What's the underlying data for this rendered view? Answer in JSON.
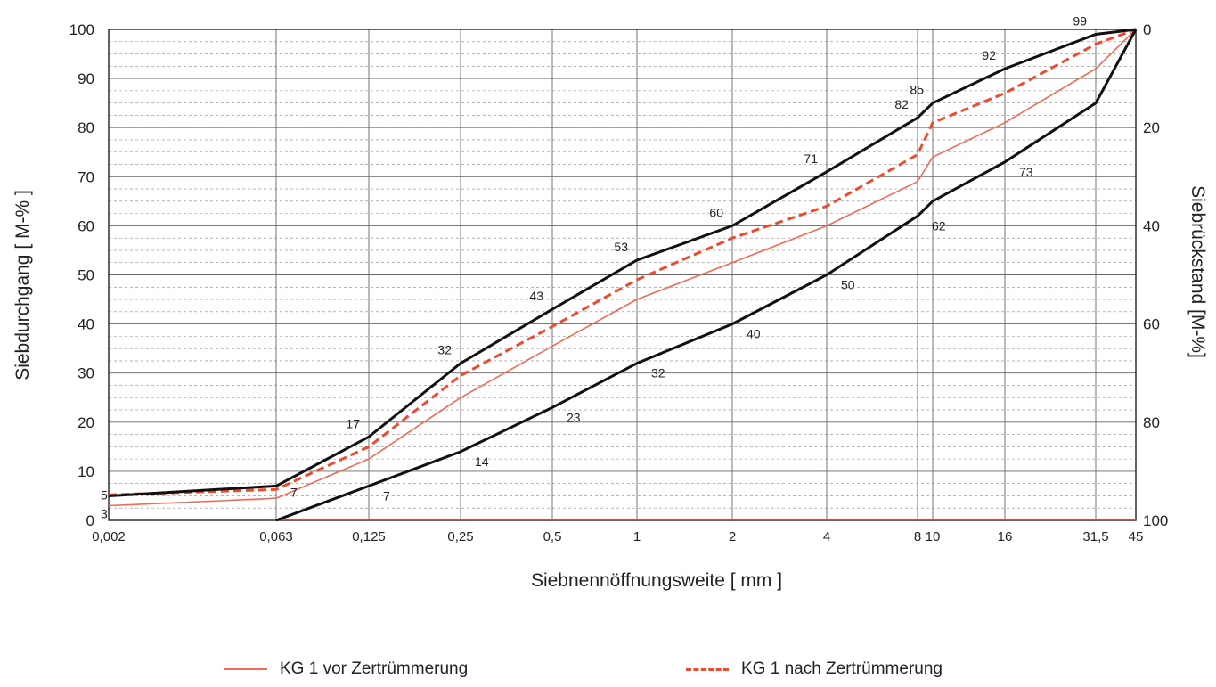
{
  "chart_data": {
    "type": "line",
    "xlabel": "Siebnennöffnungsweite [ mm ]",
    "ylabel_left": "Siebdurchgang [ M-% ]",
    "ylabel_right": "Siebrückstand [M-%]",
    "x_scale": "log",
    "x_ticks": [
      "0,002",
      "0,063",
      "0,125",
      "0,25",
      "0,5",
      "1",
      "2",
      "4",
      "8",
      "10",
      "16",
      "31,5",
      "45"
    ],
    "x_values": [
      0.002,
      0.063,
      0.125,
      0.25,
      0.5,
      1,
      2,
      4,
      8,
      10,
      16,
      31.5,
      45
    ],
    "ylim": [
      0,
      100
    ],
    "y_ticks_left": [
      0,
      10,
      20,
      30,
      40,
      50,
      60,
      70,
      80,
      90,
      100
    ],
    "y_ticks_right": [
      0,
      20,
      40,
      60,
      80,
      100
    ],
    "grid": true,
    "upper_limit": {
      "x": [
        0.002,
        0.063,
        0.125,
        0.25,
        0.5,
        1,
        2,
        4,
        8,
        10,
        16,
        31.5,
        45
      ],
      "y": [
        5,
        7,
        17,
        32,
        43,
        53,
        60,
        71,
        82,
        85,
        92,
        99,
        100
      ],
      "labels": [
        "",
        "",
        "17",
        "32",
        "43",
        "53",
        "60",
        "71",
        "82",
        "85",
        "92",
        "99",
        ""
      ]
    },
    "lower_limit": {
      "x": [
        0.063,
        0.125,
        0.25,
        0.5,
        1,
        2,
        4,
        8,
        10,
        16,
        31.5,
        45
      ],
      "y": [
        0,
        7,
        14,
        23,
        32,
        40,
        50,
        62,
        65,
        73,
        85,
        100
      ],
      "labels": [
        "",
        "7",
        "14",
        "23",
        "32",
        "40",
        "50",
        "62",
        "",
        "73",
        "",
        ""
      ]
    },
    "series": [
      {
        "name": "KG 1 vor Zertrümmerung",
        "style": "solid",
        "color": "#f06a55",
        "x": [
          0.002,
          0.063,
          0.125,
          0.25,
          0.5,
          1,
          2,
          4,
          8,
          10,
          16,
          31.5,
          45
        ],
        "y": [
          3,
          4.5,
          12.5,
          25,
          35.5,
          45,
          52.5,
          60,
          69,
          74,
          81,
          92,
          100
        ]
      },
      {
        "name": "KG 1 nach Zertrümmerung",
        "style": "dashed",
        "color": "#ee4a30",
        "x": [
          0.002,
          0.063,
          0.125,
          0.25,
          0.5,
          1,
          2,
          4,
          8,
          10,
          16,
          31.5,
          45
        ],
        "y": [
          5.2,
          6.3,
          15,
          29.5,
          39.5,
          49,
          57.5,
          64,
          74.5,
          81,
          87,
          97,
          100
        ]
      }
    ],
    "extra_labels": {
      "left_start_upper": "5",
      "left_start_lower": "3",
      "at_0063": "7"
    },
    "colors": {
      "limit": "#111111",
      "grid": "#777777",
      "baseline": "#f06a55"
    }
  }
}
